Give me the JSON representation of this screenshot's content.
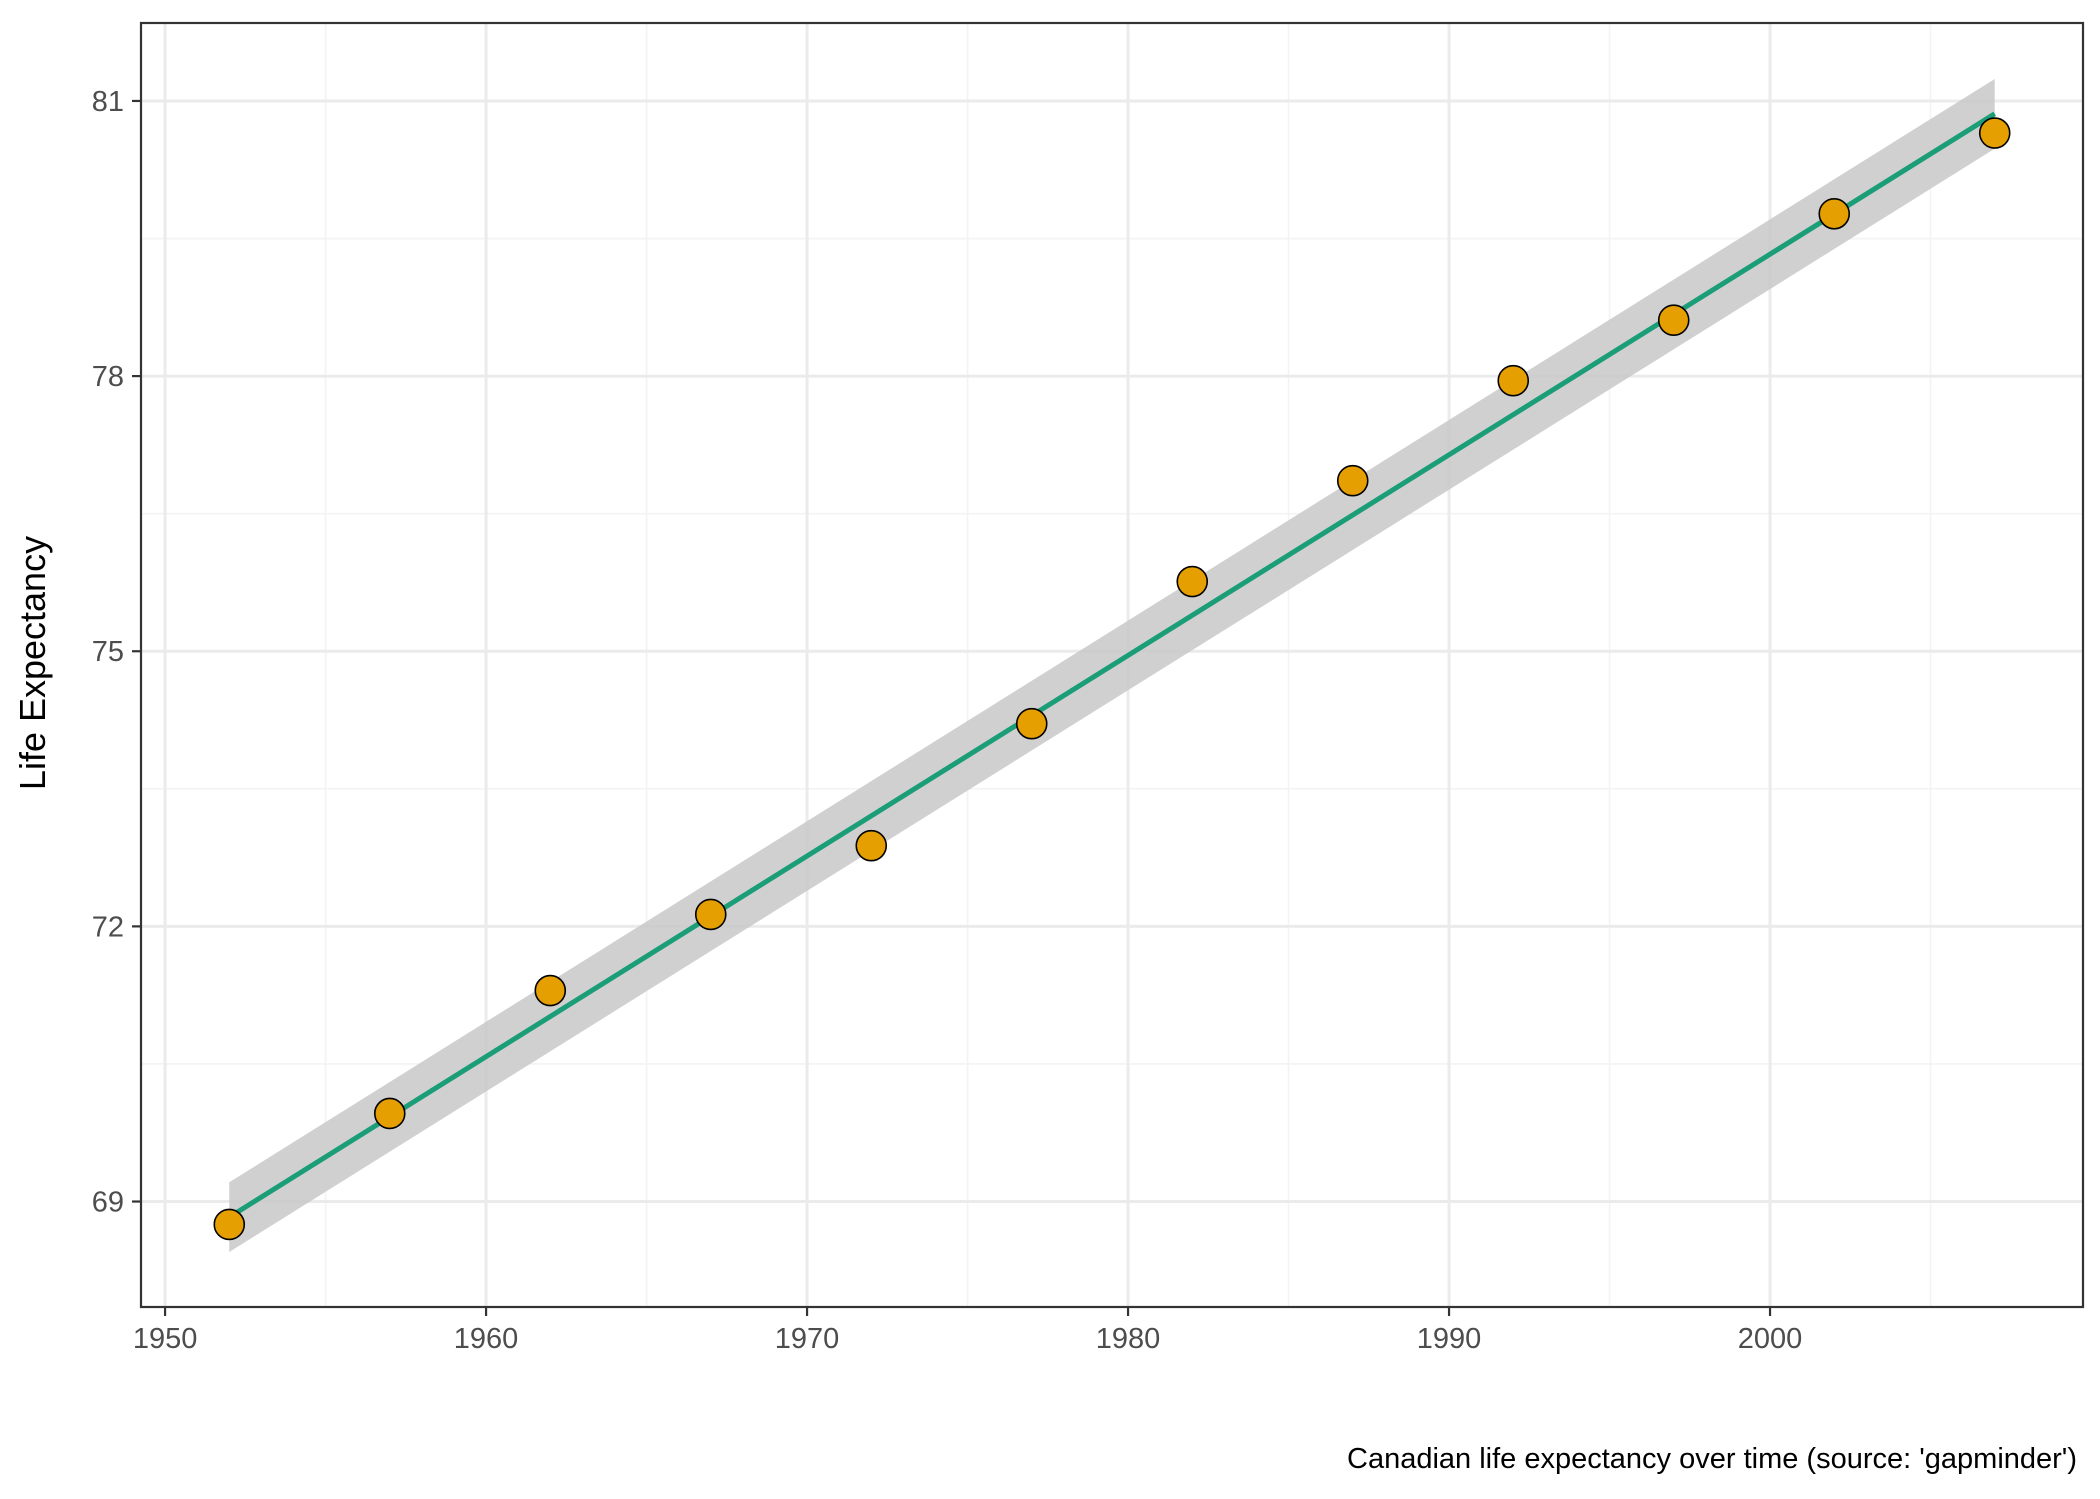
{
  "chart_data": {
    "type": "scatter",
    "title": "",
    "xlabel": "",
    "ylabel": "Life Expectancy",
    "caption": "Canadian life expectancy over time (source: 'gapminder')",
    "x_ticks": [
      1950,
      1960,
      1970,
      1980,
      1990,
      2000
    ],
    "y_ticks": [
      69,
      72,
      75,
      78,
      81
    ],
    "xlim": [
      1949.25,
      2009.75
    ],
    "ylim": [
      67.85,
      81.85
    ],
    "grid": true,
    "series": [
      {
        "name": "Canada",
        "x": [
          1952,
          1957,
          1962,
          1967,
          1972,
          1977,
          1982,
          1987,
          1992,
          1997,
          2002,
          2007
        ],
        "y": [
          68.75,
          69.96,
          71.3,
          72.13,
          72.88,
          74.21,
          75.76,
          76.86,
          77.95,
          78.61,
          79.77,
          80.65
        ]
      }
    ],
    "trend": {
      "method": "linear fit with confidence band",
      "x": [
        1952,
        2007
      ],
      "y": [
        68.83,
        80.86
      ],
      "band_lower": [
        68.45,
        80.48
      ],
      "band_upper": [
        69.21,
        81.24
      ]
    }
  },
  "colors": {
    "point_fill": "#E69F00",
    "point_stroke": "#000000",
    "trend_line": "#1B9E77",
    "confidence_band": "#C8C8C8",
    "grid_major": "#EBEBEB",
    "grid_minor": "#F3F3F3",
    "panel_border": "#333333"
  }
}
